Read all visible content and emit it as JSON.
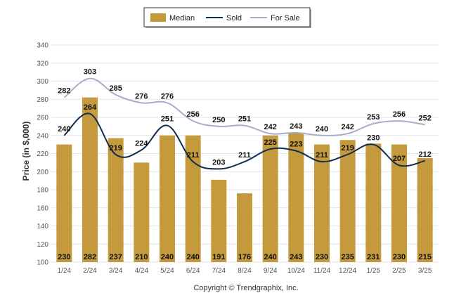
{
  "chart_data": {
    "type": "bar",
    "categories": [
      "1/24",
      "2/24",
      "3/24",
      "4/24",
      "5/24",
      "6/24",
      "7/24",
      "8/24",
      "9/24",
      "10/24",
      "11/24",
      "12/24",
      "1/25",
      "2/25",
      "3/25"
    ],
    "series": [
      {
        "name": "Median",
        "type": "bar",
        "color": "#c49a3c",
        "values": [
          230,
          282,
          237,
          210,
          240,
          240,
          191,
          176,
          240,
          243,
          230,
          235,
          231,
          230,
          215
        ]
      },
      {
        "name": "Sold",
        "type": "line",
        "color": "#0d2d4f",
        "values": [
          240,
          264,
          219,
          224,
          251,
          211,
          203,
          211,
          225,
          223,
          211,
          219,
          230,
          207,
          212
        ]
      },
      {
        "name": "For Sale",
        "type": "line",
        "color": "#a4afc7",
        "values": [
          282,
          303,
          285,
          276,
          276,
          256,
          250,
          251,
          242,
          243,
          240,
          242,
          253,
          256,
          252
        ]
      }
    ],
    "ylabel": "Price (in $,000)",
    "xlabel": "",
    "ylim": [
      100,
      340
    ],
    "yticks": [
      100,
      120,
      140,
      160,
      180,
      200,
      220,
      240,
      260,
      280,
      300,
      320,
      340
    ],
    "grid": true,
    "legend_position": "top-center"
  },
  "legend": {
    "items": [
      {
        "label": "Median",
        "kind": "swatch"
      },
      {
        "label": "Sold",
        "kind": "line"
      },
      {
        "label": "For Sale",
        "kind": "line"
      }
    ]
  },
  "copyright": "Copyright © Trendgraphix, Inc."
}
